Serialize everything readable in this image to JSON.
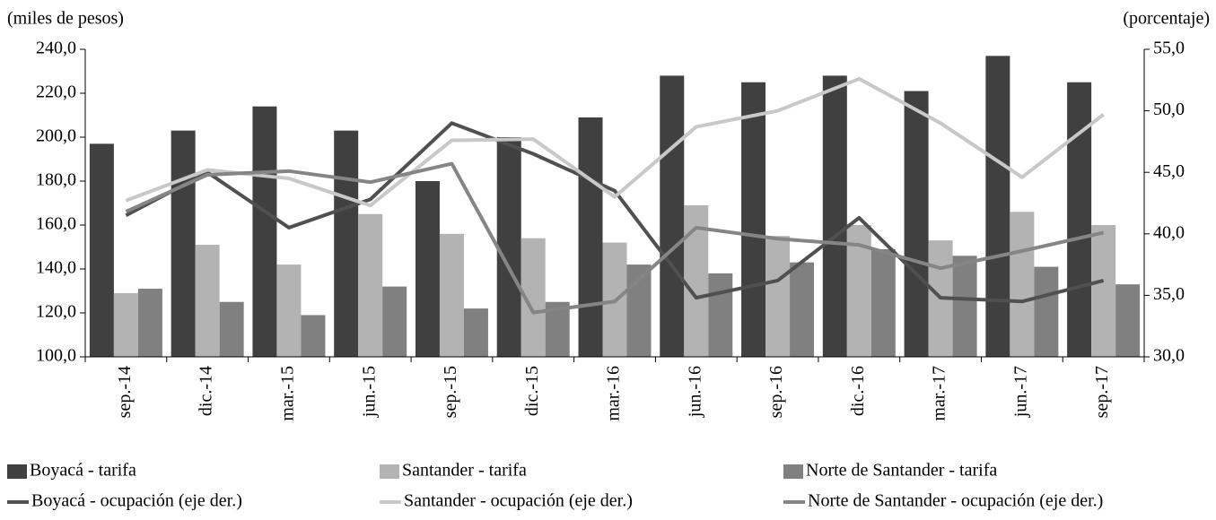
{
  "chart_data": {
    "type": "bar-line",
    "ylabel": "(miles  de pesos)",
    "y2label": "(porcentaje)",
    "categories": [
      "sep.-14",
      "dic.-14",
      "mar.-15",
      "jun.-15",
      "sep.-15",
      "dic.-15",
      "mar.-16",
      "jun.-16",
      "sep.-16",
      "dic.-16",
      "mar.-17",
      "jun.-17",
      "sep.-17"
    ],
    "series": [
      {
        "name": "Boyacá - tarifa",
        "kind": "bar",
        "color": "#404040",
        "values": [
          197,
          203,
          214,
          203,
          180,
          200,
          209,
          228,
          225,
          228,
          221,
          237,
          225
        ]
      },
      {
        "name": "Santander - tarifa",
        "kind": "bar",
        "color": "#b3b3b3",
        "values": [
          129,
          151,
          142,
          165,
          156,
          154,
          152,
          169,
          155,
          160,
          153,
          166,
          160
        ]
      },
      {
        "name": "Norte de Santander - tarifa",
        "kind": "bar",
        "color": "#808080",
        "values": [
          131,
          125,
          119,
          132,
          122,
          125,
          142,
          138,
          143,
          149,
          146,
          141,
          133
        ]
      },
      {
        "name": "Boyacá - ocupación (eje der.)",
        "kind": "line",
        "axis": "y2",
        "color": "#505050",
        "values": [
          41.5,
          45.0,
          40.5,
          42.8,
          49.0,
          46.5,
          43.5,
          34.8,
          36.2,
          41.3,
          34.8,
          34.5,
          36.2
        ]
      },
      {
        "name": "Santander - ocupación (eje der.)",
        "kind": "line",
        "axis": "y2",
        "color": "#c8c8c8",
        "values": [
          42.7,
          45.2,
          44.5,
          42.3,
          47.6,
          47.7,
          43.0,
          48.7,
          50.0,
          52.6,
          49.0,
          44.6,
          49.7
        ]
      },
      {
        "name": "Norte de Santander - ocupación (eje der.)",
        "kind": "line",
        "axis": "y2",
        "color": "#858585",
        "values": [
          41.8,
          44.8,
          45.1,
          44.2,
          45.7,
          33.6,
          34.5,
          40.5,
          39.6,
          39.1,
          37.2,
          38.6,
          40.1
        ]
      }
    ],
    "ylim": [
      100,
      240
    ],
    "yticks": [
      {
        "value": 100,
        "label": "100,0"
      },
      {
        "value": 120,
        "label": "120,0"
      },
      {
        "value": 140,
        "label": "140,0"
      },
      {
        "value": 160,
        "label": "160,0"
      },
      {
        "value": 180,
        "label": "180,0"
      },
      {
        "value": 200,
        "label": "200,0"
      },
      {
        "value": 220,
        "label": "220,0"
      },
      {
        "value": 240,
        "label": "240,0"
      }
    ],
    "y2lim": [
      30,
      55
    ],
    "y2ticks": [
      {
        "value": 30,
        "label": "30,0"
      },
      {
        "value": 35,
        "label": "35,0"
      },
      {
        "value": 40,
        "label": "40,0"
      },
      {
        "value": 45,
        "label": "45,0"
      },
      {
        "value": 50,
        "label": "50,0"
      },
      {
        "value": 55,
        "label": "55,0"
      }
    ]
  }
}
